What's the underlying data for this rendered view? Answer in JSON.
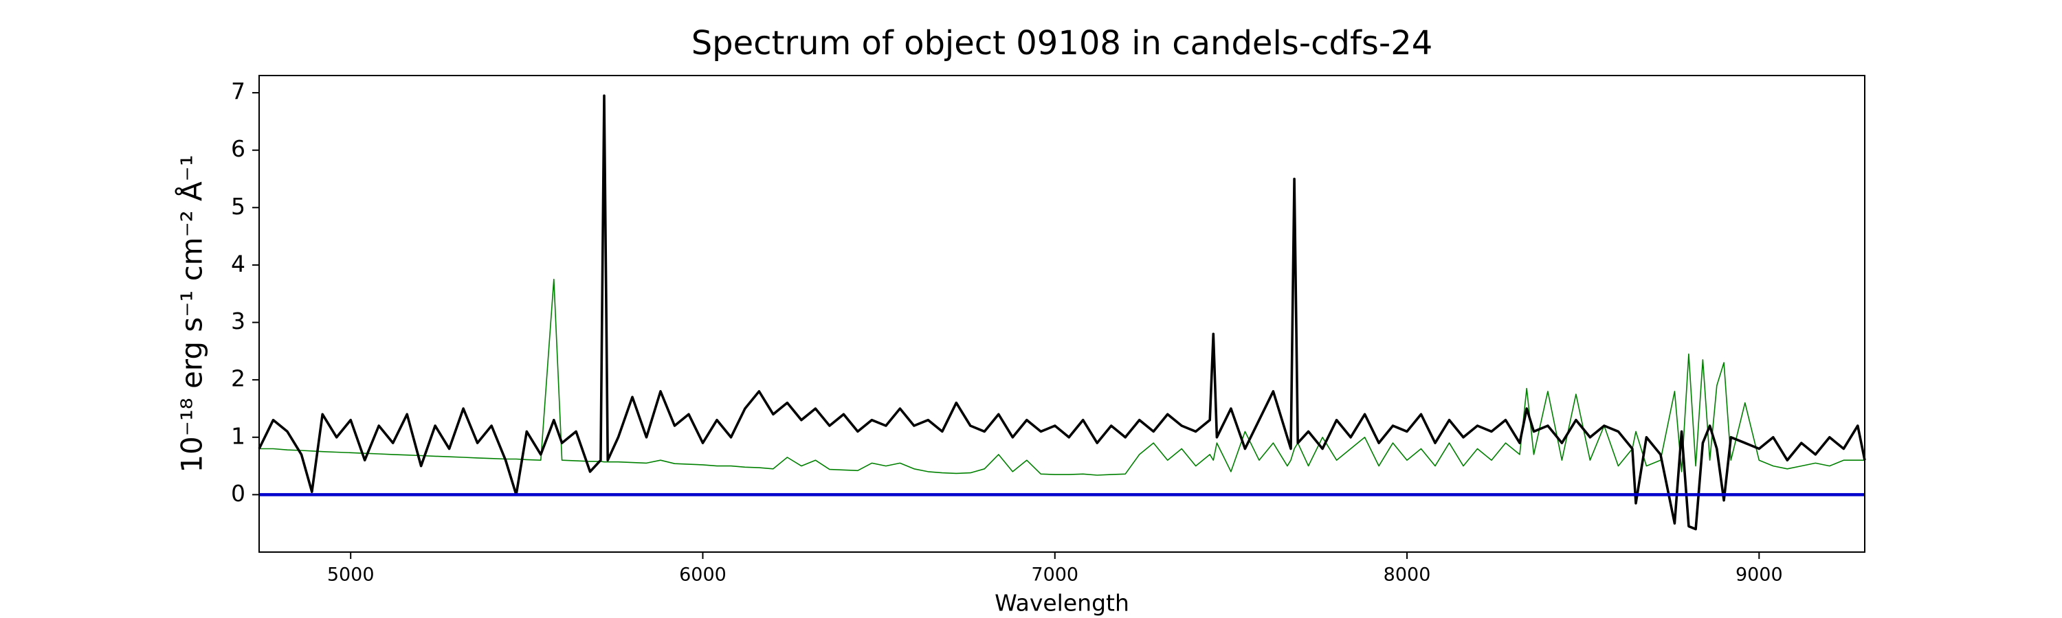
{
  "chart_data": {
    "type": "line",
    "title": "Spectrum of object 09108 in candels-cdfs-24",
    "x_label": "Wavelength",
    "y_label": "10⁻¹⁸ erg s⁻¹ cm⁻² Å⁻¹",
    "x": [
      4740,
      4780,
      4820,
      4860,
      4890,
      4920,
      4960,
      5000,
      5040,
      5080,
      5120,
      5160,
      5200,
      5240,
      5280,
      5320,
      5360,
      5400,
      5440,
      5470,
      5500,
      5540,
      5577,
      5600,
      5640,
      5680,
      5710,
      5720,
      5730,
      5760,
      5800,
      5840,
      5880,
      5920,
      5960,
      6000,
      6040,
      6080,
      6120,
      6160,
      6200,
      6240,
      6280,
      6320,
      6360,
      6400,
      6440,
      6480,
      6520,
      6560,
      6600,
      6640,
      6680,
      6720,
      6760,
      6800,
      6840,
      6880,
      6920,
      6960,
      7000,
      7040,
      7080,
      7120,
      7160,
      7200,
      7240,
      7280,
      7320,
      7360,
      7400,
      7440,
      7450,
      7460,
      7500,
      7540,
      7580,
      7620,
      7660,
      7670,
      7680,
      7690,
      7720,
      7760,
      7800,
      7840,
      7880,
      7920,
      7960,
      8000,
      8040,
      8080,
      8120,
      8160,
      8200,
      8240,
      8280,
      8320,
      8340,
      8360,
      8400,
      8440,
      8480,
      8520,
      8560,
      8600,
      8640,
      8650,
      8680,
      8720,
      8760,
      8780,
      8800,
      8820,
      8840,
      8860,
      8880,
      8900,
      8920,
      8960,
      9000,
      9040,
      9080,
      9120,
      9160,
      9200,
      9240,
      9280,
      9300
    ],
    "series": [
      {
        "color": "#008000",
        "values": [
          0.8,
          0.8,
          0.78,
          0.77,
          0.76,
          0.75,
          0.74,
          0.73,
          0.72,
          0.71,
          0.7,
          0.69,
          0.68,
          0.67,
          0.66,
          0.65,
          0.64,
          0.63,
          0.62,
          0.62,
          0.61,
          0.6,
          3.75,
          0.6,
          0.59,
          0.58,
          0.58,
          0.57,
          0.57,
          0.57,
          0.56,
          0.55,
          0.6,
          0.54,
          0.53,
          0.52,
          0.5,
          0.5,
          0.48,
          0.47,
          0.45,
          0.65,
          0.5,
          0.6,
          0.44,
          0.43,
          0.42,
          0.55,
          0.5,
          0.55,
          0.45,
          0.4,
          0.38,
          0.37,
          0.38,
          0.45,
          0.7,
          0.4,
          0.6,
          0.36,
          0.35,
          0.35,
          0.36,
          0.34,
          0.35,
          0.36,
          0.7,
          0.9,
          0.6,
          0.8,
          0.5,
          0.7,
          0.6,
          0.9,
          0.4,
          1.1,
          0.6,
          0.9,
          0.5,
          0.6,
          0.8,
          0.9,
          0.5,
          1.0,
          0.6,
          0.8,
          1.0,
          0.5,
          0.9,
          0.6,
          0.8,
          0.5,
          0.9,
          0.5,
          0.8,
          0.6,
          0.9,
          0.7,
          1.85,
          0.7,
          1.8,
          0.6,
          1.75,
          0.6,
          1.2,
          0.5,
          0.8,
          1.1,
          0.5,
          0.6,
          1.8,
          0.4,
          2.45,
          0.5,
          2.35,
          0.6,
          1.9,
          2.3,
          0.6,
          1.6,
          0.6,
          0.5,
          0.45,
          0.5,
          0.55,
          0.5,
          0.6,
          0.6,
          0.6
        ]
      },
      {
        "color": "#000000",
        "values": [
          0.8,
          1.3,
          1.1,
          0.7,
          0.05,
          1.4,
          1.0,
          1.3,
          0.6,
          1.2,
          0.9,
          1.4,
          0.5,
          1.2,
          0.8,
          1.5,
          0.9,
          1.2,
          0.6,
          0.0,
          1.1,
          0.7,
          1.3,
          0.9,
          1.1,
          0.4,
          0.6,
          6.95,
          0.6,
          1.0,
          1.7,
          1.0,
          1.8,
          1.2,
          1.4,
          0.9,
          1.3,
          1.0,
          1.5,
          1.8,
          1.4,
          1.6,
          1.3,
          1.5,
          1.2,
          1.4,
          1.1,
          1.3,
          1.2,
          1.5,
          1.2,
          1.3,
          1.1,
          1.6,
          1.2,
          1.1,
          1.4,
          1.0,
          1.3,
          1.1,
          1.2,
          1.0,
          1.3,
          0.9,
          1.2,
          1.0,
          1.3,
          1.1,
          1.4,
          1.2,
          1.1,
          1.3,
          2.8,
          1.0,
          1.5,
          0.8,
          1.3,
          1.8,
          1.0,
          0.8,
          5.5,
          0.9,
          1.1,
          0.8,
          1.3,
          1.0,
          1.4,
          0.9,
          1.2,
          1.1,
          1.4,
          0.9,
          1.3,
          1.0,
          1.2,
          1.1,
          1.3,
          0.9,
          1.5,
          1.1,
          1.2,
          0.9,
          1.3,
          1.0,
          1.2,
          1.1,
          0.8,
          -0.15,
          1.0,
          0.7,
          -0.5,
          1.1,
          -0.55,
          -0.6,
          0.9,
          1.2,
          0.8,
          -0.1,
          1.0,
          0.9,
          0.8,
          1.0,
          0.6,
          0.9,
          0.7,
          1.0,
          0.8,
          1.2,
          0.6
        ]
      }
    ],
    "hlines": [
      {
        "value": 0,
        "color": "#0000cc"
      }
    ],
    "xlim": [
      4740,
      9300
    ],
    "ylim": [
      -1,
      7.3
    ],
    "xticks": [
      5000,
      6000,
      7000,
      8000,
      9000
    ],
    "yticks": [
      0,
      1,
      2,
      3,
      4,
      5,
      6,
      7
    ],
    "grid": false
  }
}
